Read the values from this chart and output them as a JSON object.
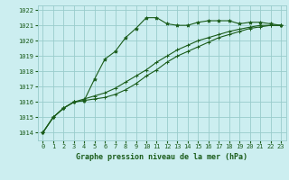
{
  "title": "Graphe pression niveau de la mer (hPa)",
  "bg_color": "#cceef0",
  "grid_color": "#99cccc",
  "line_color": "#1a5c1a",
  "marker_color": "#1a5c1a",
  "xlim": [
    -0.5,
    23.5
  ],
  "ylim": [
    1013.5,
    1022.3
  ],
  "yticks": [
    1014,
    1015,
    1016,
    1017,
    1018,
    1019,
    1020,
    1021,
    1022
  ],
  "xticks": [
    0,
    1,
    2,
    3,
    4,
    5,
    6,
    7,
    8,
    9,
    10,
    11,
    12,
    13,
    14,
    15,
    16,
    17,
    18,
    19,
    20,
    21,
    22,
    23
  ],
  "series1": {
    "x": [
      0,
      1,
      2,
      3,
      4,
      5,
      6,
      7,
      8,
      9,
      10,
      11,
      12,
      13,
      14,
      15,
      16,
      17,
      18,
      19,
      20,
      21,
      22,
      23
    ],
    "y": [
      1014.0,
      1015.0,
      1015.6,
      1016.0,
      1016.1,
      1017.5,
      1018.8,
      1019.3,
      1020.2,
      1020.8,
      1021.5,
      1021.5,
      1021.1,
      1021.0,
      1021.0,
      1021.2,
      1021.3,
      1021.3,
      1021.3,
      1021.1,
      1021.2,
      1021.2,
      1021.1,
      1021.0
    ]
  },
  "series2": {
    "x": [
      0,
      1,
      2,
      3,
      4,
      5,
      6,
      7,
      8,
      9,
      10,
      11,
      12,
      13,
      14,
      15,
      16,
      17,
      18,
      19,
      20,
      21,
      22,
      23
    ],
    "y": [
      1014.0,
      1015.0,
      1015.6,
      1016.0,
      1016.1,
      1016.2,
      1016.3,
      1016.5,
      1016.8,
      1017.2,
      1017.7,
      1018.1,
      1018.6,
      1019.0,
      1019.3,
      1019.6,
      1019.9,
      1020.2,
      1020.4,
      1020.6,
      1020.8,
      1020.9,
      1021.0,
      1021.0
    ]
  },
  "series3": {
    "x": [
      0,
      1,
      2,
      3,
      4,
      5,
      6,
      7,
      8,
      9,
      10,
      11,
      12,
      13,
      14,
      15,
      16,
      17,
      18,
      19,
      20,
      21,
      22,
      23
    ],
    "y": [
      1014.0,
      1015.0,
      1015.6,
      1016.0,
      1016.2,
      1016.4,
      1016.6,
      1016.9,
      1017.3,
      1017.7,
      1018.1,
      1018.6,
      1019.0,
      1019.4,
      1019.7,
      1020.0,
      1020.2,
      1020.4,
      1020.6,
      1020.75,
      1020.88,
      1021.0,
      1021.0,
      1021.0
    ]
  }
}
